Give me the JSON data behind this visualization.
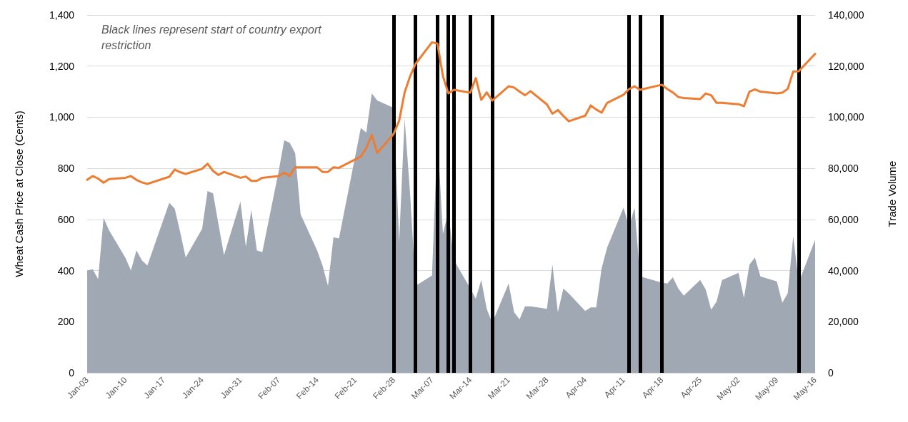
{
  "chart_data": {
    "type": "line",
    "ylabel": "Wheat Cash Price at Close (Cents)",
    "y2label": "Trade Volume",
    "annotations": [
      "Black lines represent start of country export restriction"
    ],
    "x": [
      "--01-03",
      "--01-04",
      "--01-05",
      "--01-06",
      "--01-07",
      "--01-10",
      "--01-11",
      "--01-12",
      "--01-13",
      "--01-14",
      "--01-18",
      "--01-19",
      "--01-20",
      "--01-21",
      "--01-24",
      "--01-25",
      "--01-26",
      "--01-27",
      "--01-28",
      "--01-31",
      "--02-01",
      "--02-02",
      "--02-03",
      "--02-04",
      "--02-07",
      "--02-08",
      "--02-09",
      "--02-10",
      "--02-11",
      "--02-14",
      "--02-15",
      "--02-16",
      "--02-17",
      "--02-18",
      "--02-22",
      "--02-23",
      "--02-24",
      "--02-25",
      "--02-28",
      "--03-01",
      "--03-02",
      "--03-03",
      "--03-04",
      "--03-07",
      "--03-08",
      "--03-09",
      "--03-10",
      "--03-11",
      "--03-14",
      "--03-15",
      "--03-16",
      "--03-17",
      "--03-18",
      "--03-21",
      "--03-22",
      "--03-23",
      "--03-24",
      "--03-25",
      "--03-28",
      "--03-29",
      "--03-30",
      "--03-31",
      "--04-01",
      "--04-04",
      "--04-05",
      "--04-06",
      "--04-07",
      "--04-08",
      "--04-11",
      "--04-12",
      "--04-13",
      "--04-14",
      "--04-18",
      "--04-19",
      "--04-20",
      "--04-21",
      "--04-22",
      "--04-25",
      "--04-26",
      "--04-27",
      "--04-28",
      "--04-29",
      "--05-02",
      "--05-03",
      "--05-04",
      "--05-05",
      "--05-06",
      "--05-09",
      "--05-10",
      "--05-11",
      "--05-12",
      "--05-13",
      "--05-16"
    ],
    "series": [
      {
        "type": "area",
        "axis": "y2",
        "color": "#a0a8b3",
        "values": [
          40000,
          40500,
          36700,
          60600,
          55800,
          45000,
          40000,
          47900,
          44000,
          42000,
          66500,
          64200,
          55000,
          45100,
          56300,
          71100,
          70200,
          58000,
          46000,
          67000,
          49300,
          63700,
          47900,
          47200,
          79000,
          91000,
          90000,
          86000,
          62000,
          48000,
          42000,
          34000,
          53000,
          52600,
          95800,
          94000,
          109300,
          106500,
          103700,
          51200,
          99500,
          70000,
          34000,
          38100,
          93000,
          54400,
          63000,
          44200,
          33000,
          29000,
          36300,
          25000,
          19500,
          34900,
          23700,
          20900,
          26000,
          26000,
          25000,
          42300,
          23700,
          33000,
          31000,
          24200,
          25600,
          25600,
          40900,
          49000,
          64600,
          57000,
          64600,
          37700,
          35300,
          34900,
          37400,
          33000,
          30200,
          36300,
          32600,
          24700,
          27900,
          36300,
          39100,
          29300,
          42300,
          45100,
          37700,
          35800,
          27400,
          31200,
          53500,
          35300,
          52100
        ]
      },
      {
        "axis": "y",
        "color": "#ed7d31",
        "values": [
          755,
          770,
          760,
          744,
          758,
          763,
          770,
          755,
          745,
          739,
          767,
          795,
          785,
          778,
          798,
          818,
          790,
          774,
          786,
          763,
          768,
          751,
          751,
          763,
          770,
          783,
          770,
          804,
          804,
          804,
          786,
          786,
          804,
          802,
          846,
          880,
          930,
          860,
          935,
          986,
          1097,
          1160,
          1209,
          1293,
          1288,
          1160,
          1093,
          1107,
          1096,
          1153,
          1068,
          1097,
          1065,
          1121,
          1116,
          1100,
          1086,
          1102,
          1050,
          1014,
          1028,
          1005,
          984,
          1006,
          1046,
          1030,
          1018,
          1056,
          1088,
          1110,
          1121,
          1107,
          1127,
          1110,
          1097,
          1079,
          1075,
          1071,
          1093,
          1086,
          1056,
          1056,
          1051,
          1043,
          1100,
          1109,
          1100,
          1093,
          1096,
          1111,
          1179,
          1180,
          1248
        ]
      }
    ],
    "xlim": [
      "--01-03",
      "--05-16"
    ],
    "xticks": [
      {
        "value": "--01-03",
        "label": "Jan-03"
      },
      {
        "value": "--01-10",
        "label": "Jan-10"
      },
      {
        "value": "--01-17",
        "label": "Jan-17"
      },
      {
        "value": "--01-24",
        "label": "Jan-24"
      },
      {
        "value": "--01-31",
        "label": "Jan-31"
      },
      {
        "value": "--02-07",
        "label": "Feb-07"
      },
      {
        "value": "--02-14",
        "label": "Feb-14"
      },
      {
        "value": "--02-21",
        "label": "Feb-21"
      },
      {
        "value": "--02-28",
        "label": "Feb-28"
      },
      {
        "value": "--03-07",
        "label": "Mar-07"
      },
      {
        "value": "--03-14",
        "label": "Mar-14"
      },
      {
        "value": "--03-21",
        "label": "Mar-21"
      },
      {
        "value": "--03-28",
        "label": "Mar-28"
      },
      {
        "value": "--04-04",
        "label": "Apr-04"
      },
      {
        "value": "--04-11",
        "label": "Apr-11"
      },
      {
        "value": "--04-18",
        "label": "Apr-18"
      },
      {
        "value": "--04-25",
        "label": "Apr-25"
      },
      {
        "value": "--05-02",
        "label": "May-02"
      },
      {
        "value": "--05-09",
        "label": "May-09"
      },
      {
        "value": "--05-16",
        "label": "May-16"
      }
    ],
    "ylim": [
      0,
      1400
    ],
    "yticks": [
      0,
      {
        "value": 200,
        "label": "200"
      },
      400,
      600,
      800,
      {
        "value": 1000,
        "label": "1,000"
      },
      {
        "value": 1200,
        "label": "1,200"
      },
      {
        "value": 1400,
        "label": "1,400"
      }
    ],
    "y2lim": [
      0,
      140000
    ],
    "y2ticks": [
      0,
      {
        "value": 20000,
        "label": "20,000"
      },
      {
        "value": 40000,
        "label": "40,000"
      },
      {
        "value": 60000,
        "label": "60,000"
      },
      {
        "value": 80000,
        "label": "80,000"
      },
      {
        "value": 100000,
        "label": "100,000"
      },
      {
        "value": 120000,
        "label": "120,000"
      },
      {
        "value": 140000,
        "label": "140,000"
      }
    ],
    "ref_lines": [
      {
        "axis": "x",
        "value": "--02-28",
        "color": "#000000"
      },
      {
        "axis": "x",
        "value": "--03-04",
        "color": "#000000"
      },
      {
        "axis": "x",
        "value": "--03-08",
        "color": "#000000"
      },
      {
        "axis": "x",
        "value": "--03-10",
        "color": "#000000"
      },
      {
        "axis": "x",
        "value": "--03-11",
        "color": "#000000"
      },
      {
        "axis": "x",
        "value": "--03-14",
        "color": "#000000"
      },
      {
        "axis": "x",
        "value": "--03-18",
        "color": "#000000"
      },
      {
        "axis": "x",
        "value": "--04-12",
        "color": "#000000"
      },
      {
        "axis": "x",
        "value": "--04-14",
        "color": "#000000"
      },
      {
        "axis": "x",
        "value": "--04-18",
        "color": "#000000"
      },
      {
        "axis": "x",
        "value": "--05-13",
        "color": "#000000"
      }
    ],
    "grid": "y",
    "marker": "none"
  }
}
